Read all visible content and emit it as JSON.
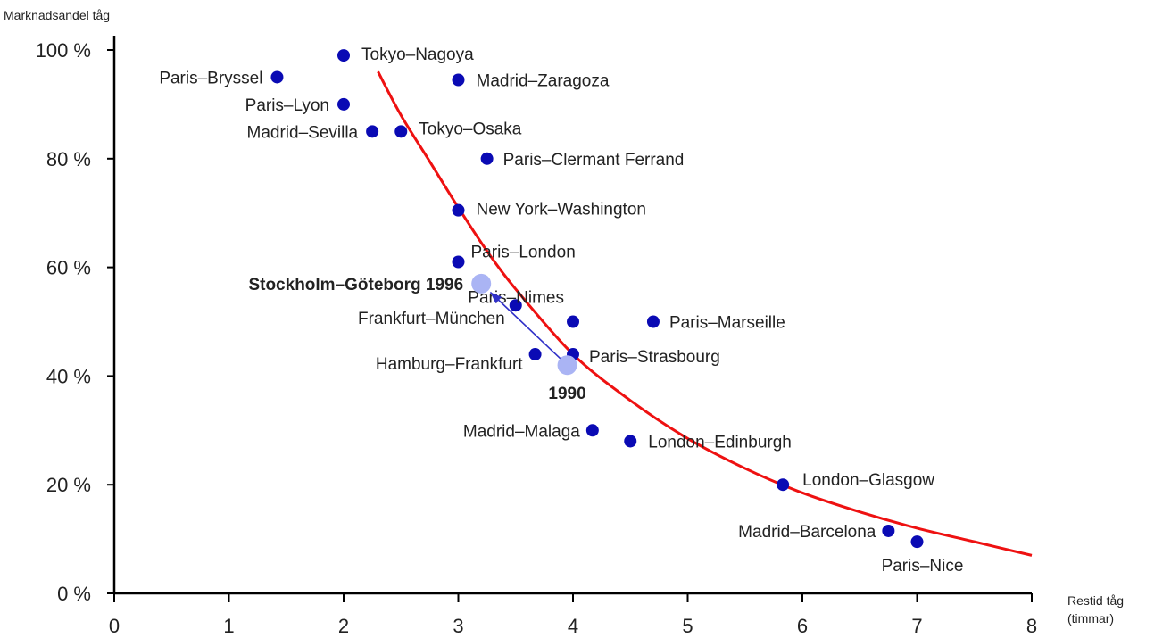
{
  "chart_data": {
    "type": "scatter",
    "ylabel": "Marknadsandel tåg",
    "xlabel_line1": "Restid  tåg",
    "xlabel_line2": "(timmar)",
    "xlim": [
      0,
      8
    ],
    "ylim": [
      0,
      100
    ],
    "x_ticks": [
      "0",
      "1",
      "2",
      "3",
      "4",
      "5",
      "6",
      "7",
      "8"
    ],
    "y_ticks": [
      "0 %",
      "20 %",
      "40 %",
      "60 %",
      "80 %",
      "100 %"
    ],
    "grid": false,
    "colors": {
      "points": "#0a0ab4",
      "trend": "#ee1111",
      "highlight": "#aab4f4",
      "arrow": "#3030c8",
      "axis": "#000000"
    },
    "points": [
      {
        "label": "Tokyo–Nagoya",
        "x": 2.0,
        "y": 99
      },
      {
        "label": "Paris–Bryssel",
        "x": 1.42,
        "y": 95
      },
      {
        "label": "Madrid–Zaragoza",
        "x": 3.0,
        "y": 94.5
      },
      {
        "label": "Paris–Lyon",
        "x": 2.0,
        "y": 90
      },
      {
        "label": "Madrid–Sevilla",
        "x": 2.25,
        "y": 85
      },
      {
        "label": "Tokyo–Osaka",
        "x": 2.5,
        "y": 85
      },
      {
        "label": "Paris–Clermant Ferrand",
        "x": 3.25,
        "y": 80
      },
      {
        "label": "New York–Washington",
        "x": 3.0,
        "y": 70.5
      },
      {
        "label": "Paris–London",
        "x": 3.0,
        "y": 61
      },
      {
        "label": "Frankfurt–München",
        "x": 3.5,
        "y": 53
      },
      {
        "label": "Paris–Nimes",
        "x": 4.0,
        "y": 50
      },
      {
        "label": "Paris–Marseille",
        "x": 4.7,
        "y": 50
      },
      {
        "label": "Hamburg–Frankfurt",
        "x": 3.67,
        "y": 44
      },
      {
        "label": "Paris–Strasbourg",
        "x": 4.0,
        "y": 44
      },
      {
        "label": "Madrid–Malaga",
        "x": 4.17,
        "y": 30
      },
      {
        "label": "London–Edinburgh",
        "x": 4.5,
        "y": 28
      },
      {
        "label": "London–Glasgow",
        "x": 5.83,
        "y": 20
      },
      {
        "label": "Madrid–Barcelona",
        "x": 6.75,
        "y": 11.5
      },
      {
        "label": "Paris–Nice",
        "x": 7.0,
        "y": 9.5
      }
    ],
    "highlight": {
      "name": "Stockholm–Göteborg",
      "from": {
        "label": "1990",
        "x": 3.95,
        "y": 42
      },
      "to": {
        "label": "1996",
        "x": 3.2,
        "y": 57
      }
    },
    "trend_curve": [
      [
        2.3,
        96
      ],
      [
        2.5,
        88
      ],
      [
        2.75,
        79.5
      ],
      [
        3.0,
        71
      ],
      [
        3.25,
        63
      ],
      [
        3.5,
        56
      ],
      [
        4.0,
        44
      ],
      [
        4.5,
        35.5
      ],
      [
        5.0,
        28.5
      ],
      [
        5.5,
        23
      ],
      [
        6.0,
        18.5
      ],
      [
        6.5,
        15
      ],
      [
        7.0,
        12
      ],
      [
        7.5,
        9.5
      ],
      [
        8.0,
        7
      ]
    ]
  }
}
